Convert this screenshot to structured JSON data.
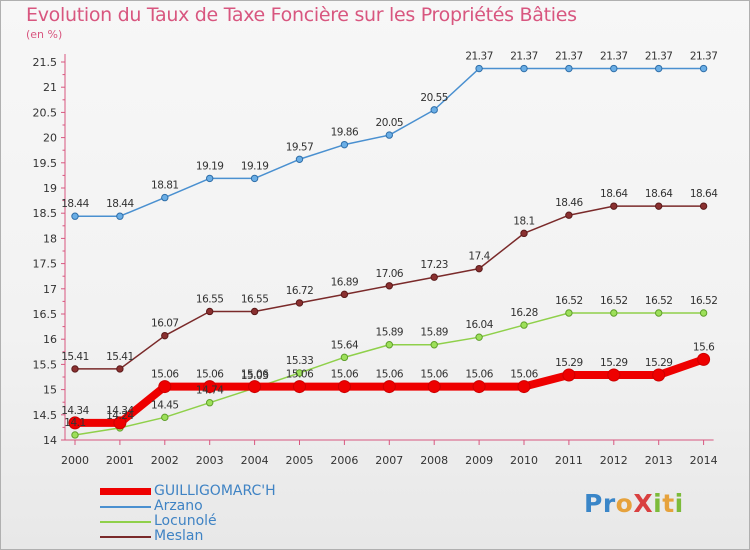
{
  "title": "Evolution du Taux de Taxe Foncière sur les Propriétés Bâties",
  "subtitle": "(en %)",
  "logo": {
    "text": "ProXiti"
  },
  "chart_data": {
    "type": "line",
    "title": "Evolution du Taux de Taxe Foncière sur les Propriétés Bâties",
    "ylabel": "(en %)",
    "xlabel": "",
    "ylim": [
      14,
      21.5
    ],
    "yticks": [
      "14",
      "14.5",
      "15",
      "15.5",
      "16",
      "16.5",
      "17",
      "17.5",
      "18",
      "18.5",
      "19",
      "19.5",
      "20",
      "20.5",
      "21",
      "21.5"
    ],
    "x": [
      "2000",
      "2001",
      "2002",
      "2003",
      "2004",
      "2005",
      "2006",
      "2007",
      "2008",
      "2009",
      "2010",
      "2011",
      "2012",
      "2013",
      "2014"
    ],
    "grid": false,
    "legend": "bottom-left",
    "series": [
      {
        "name": "GUILLIGOMARC'H",
        "color": "#ee0000",
        "values": [
          14.34,
          14.34,
          15.06,
          15.06,
          15.06,
          15.06,
          15.06,
          15.06,
          15.06,
          15.06,
          15.06,
          15.29,
          15.29,
          15.29,
          15.6
        ]
      },
      {
        "name": "Arzano",
        "color": "#4a90d0",
        "values": [
          18.44,
          18.44,
          18.81,
          19.19,
          19.19,
          19.57,
          19.86,
          20.05,
          20.55,
          21.37,
          21.37,
          21.37,
          21.37,
          21.37,
          21.37
        ]
      },
      {
        "name": "Locunolé",
        "color": "#8fd04a",
        "values": [
          14.1,
          14.24,
          14.45,
          14.74,
          15.03,
          15.33,
          15.64,
          15.89,
          15.89,
          16.04,
          16.28,
          16.52,
          16.52,
          16.52,
          16.52
        ]
      },
      {
        "name": "Meslan",
        "color": "#7a2a2a",
        "values": [
          15.41,
          15.41,
          16.07,
          16.55,
          16.55,
          16.72,
          16.89,
          17.06,
          17.23,
          17.4,
          18.1,
          18.46,
          18.64,
          18.64,
          18.64
        ]
      }
    ],
    "data_labels": {
      "GUILLIGOMARC'H": [
        "14.34",
        "14.34",
        "15.06",
        "15.06",
        "15.06",
        "15.06",
        "15.06",
        "15.06",
        "15.06",
        "15.06",
        "15.06",
        "15.29",
        "15.29",
        "15.29",
        "15.6"
      ],
      "Arzano": [
        "18.44",
        "18.44",
        "18.81",
        "19.19",
        "19.19",
        "19.57",
        "19.86",
        "20.05",
        "20.55",
        "21.37",
        "21.37",
        "21.37",
        "21.37",
        "21.37",
        "21.37"
      ],
      "Locunolé": [
        "14.1",
        "14.24",
        "14.45",
        "14.74",
        "15.03",
        "15.33",
        "15.64",
        "15.89",
        "15.89",
        "16.04",
        "16.28",
        "16.52",
        "16.52",
        "16.52",
        "16.52"
      ],
      "Meslan": [
        "15.41",
        "15.41",
        "16.07",
        "16.55",
        "16.55",
        "16.72",
        "16.89",
        "17.06",
        "17.23",
        "17.4",
        "18.1",
        "18.46",
        "18.64",
        "18.64",
        "18.64"
      ]
    }
  }
}
